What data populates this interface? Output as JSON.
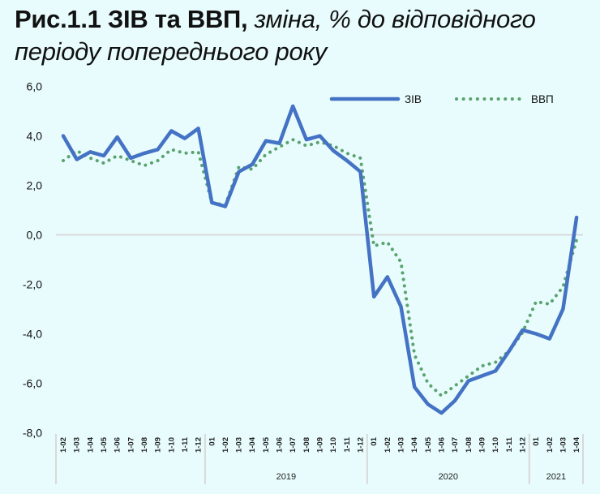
{
  "title": {
    "bold": "Рис.1.1 ЗІВ та ВВП,",
    "italic_line1": " зміна, % до відповідного",
    "italic_line2": "періоду попереднього року"
  },
  "colors": {
    "background": "#e8fcfd",
    "ziv": "#4472c4",
    "vvp": "#5aa26e",
    "gridline": "#d9d9d9",
    "separator": "#d9d9d9"
  },
  "chart_data": {
    "type": "line",
    "title": "Рис.1.1 ЗІВ та ВВП, зміна, % до відповідного періоду попереднього року",
    "xlabel": "",
    "ylabel": "",
    "ylim": [
      -8,
      6
    ],
    "yticks": [
      "6,0",
      "4,0",
      "2,0",
      "0,0",
      "-2,0",
      "-4,0",
      "-6,0",
      "-8,0"
    ],
    "ytick_values": [
      6,
      4,
      2,
      0,
      -2,
      -4,
      -6,
      -8
    ],
    "grid": "zero line only",
    "legend_position": "top-right",
    "groups": [
      {
        "year": "",
        "labels": [
          "1-02",
          "1-03",
          "1-04",
          "1-05",
          "1-06",
          "1-07",
          "1-08",
          "1-09",
          "1-10",
          "1-11",
          "1-12"
        ]
      },
      {
        "year": "2019",
        "labels": [
          "01",
          "1-02",
          "1-03",
          "1-04",
          "1-05",
          "1-06",
          "1-07",
          "1-08",
          "1-09",
          "1-10",
          "1-11",
          "1-12"
        ]
      },
      {
        "year": "2020",
        "labels": [
          "01",
          "1-02",
          "1-03",
          "1-04",
          "1-05",
          "1-06",
          "1-07",
          "1-08",
          "1-09",
          "1-10",
          "1-11",
          "1-12"
        ]
      },
      {
        "year": "2021",
        "labels": [
          "01",
          "1-02",
          "1-03",
          "1-04"
        ]
      }
    ],
    "series": [
      {
        "name": "ЗІВ",
        "style": "solid",
        "values": [
          4.0,
          3.05,
          3.35,
          3.2,
          3.95,
          3.1,
          3.3,
          3.45,
          4.2,
          3.9,
          4.3,
          1.3,
          1.15,
          2.55,
          2.85,
          3.8,
          3.7,
          5.2,
          3.85,
          4.0,
          3.4,
          3.0,
          2.55,
          -2.5,
          -1.7,
          -2.9,
          -6.15,
          -6.85,
          -7.2,
          -6.7,
          -5.9,
          -5.7,
          -5.5,
          -4.7,
          -3.85,
          -4.0,
          -4.2,
          -3.0,
          0.7
        ]
      },
      {
        "name": "ВВП",
        "style": "dotted",
        "values": [
          3.0,
          3.4,
          3.1,
          2.9,
          3.2,
          3.0,
          2.8,
          3.0,
          3.45,
          3.3,
          3.35,
          1.3,
          1.2,
          2.75,
          2.65,
          3.25,
          3.55,
          3.85,
          3.6,
          3.75,
          3.6,
          3.3,
          3.1,
          -0.45,
          -0.3,
          -1.1,
          -4.85,
          -6.0,
          -6.5,
          -6.1,
          -5.7,
          -5.3,
          -5.15,
          -4.7,
          -3.95,
          -2.7,
          -2.8,
          -2.1,
          -0.2
        ]
      }
    ]
  }
}
